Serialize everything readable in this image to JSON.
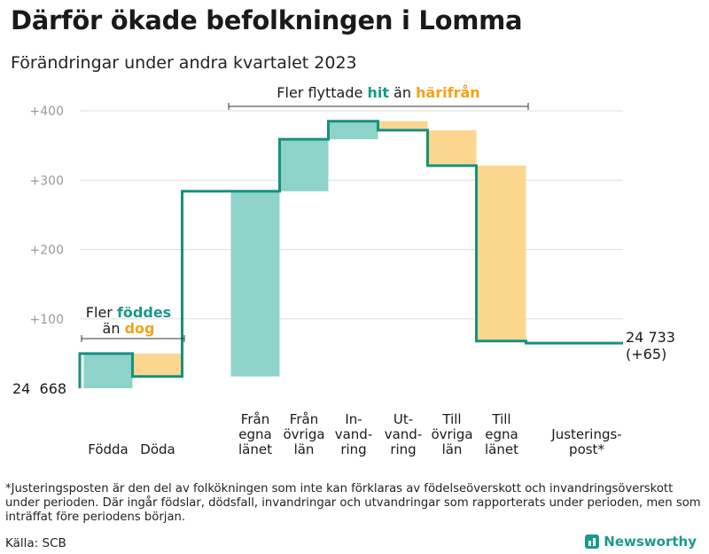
{
  "title": "Därför ökade befolkningen i Lomma",
  "subtitle": "Förändringar under andra kvartalet 2023",
  "colors": {
    "positive": "#8dd3c9",
    "negative": "#fbd68f",
    "line": "#16917f",
    "grid": "#dddddd",
    "positive_text": "#17998a",
    "negative_text": "#f3a116"
  },
  "annotations": {
    "births": {
      "line1_prefix": "Fler ",
      "line1_highlight": "föddes",
      "line2_prefix": "än ",
      "line2_highlight": "dog"
    },
    "migration": {
      "prefix": "Fler flyttade ",
      "highlight1": "hit",
      "middle": " än ",
      "highlight2": "härifrån"
    }
  },
  "start_label": "24  668",
  "end_label_line1": "24 733",
  "end_label_line2": "(+65)",
  "footnote": "*Justeringsposten är den del av folkökningen som inte kan förklaras av födelseöverskott och invandringsöverskott under perioden. Där ingår födslar, dödsfall, invandringar och utvandringar som rapporterats under perioden, men som inträffat före periodens början.",
  "source": "Källa: SCB",
  "brand": "Newsworthy",
  "chart_data": {
    "type": "waterfall",
    "start_value": 0,
    "end_value": 65,
    "baseline_label": "24 668",
    "ylim": [
      0,
      400
    ],
    "yticks": [
      100,
      200,
      300,
      400
    ],
    "ytick_labels": [
      "+100",
      "+200",
      "+300",
      "+400"
    ],
    "categories": [
      {
        "name": "Födda",
        "label_lines": [
          "Födda"
        ],
        "change": 50,
        "type": "positive"
      },
      {
        "name": "Döda",
        "label_lines": [
          "Döda"
        ],
        "change": -33,
        "type": "negative"
      },
      {
        "name": "Från egna länet",
        "label_lines": [
          "Från",
          "egna",
          "länet"
        ],
        "change": 267,
        "type": "positive"
      },
      {
        "name": "Från övriga län",
        "label_lines": [
          "Från",
          "övriga",
          "län"
        ],
        "change": 75,
        "type": "positive"
      },
      {
        "name": "Invandring",
        "label_lines": [
          "In-",
          "vand-",
          "ring"
        ],
        "change": 26,
        "type": "positive"
      },
      {
        "name": "Utvandring",
        "label_lines": [
          "Ut-",
          "vand-",
          "ring"
        ],
        "change": -13,
        "type": "negative"
      },
      {
        "name": "Till övriga län",
        "label_lines": [
          "Till",
          "övriga",
          "län"
        ],
        "change": -51,
        "type": "negative"
      },
      {
        "name": "Till egna länet",
        "label_lines": [
          "Till",
          "egna",
          "länet"
        ],
        "change": -253,
        "type": "negative"
      },
      {
        "name": "Justeringspost",
        "label_lines": [
          "Justerings-",
          "post*"
        ],
        "change": -3,
        "type": "adjustment"
      }
    ]
  }
}
